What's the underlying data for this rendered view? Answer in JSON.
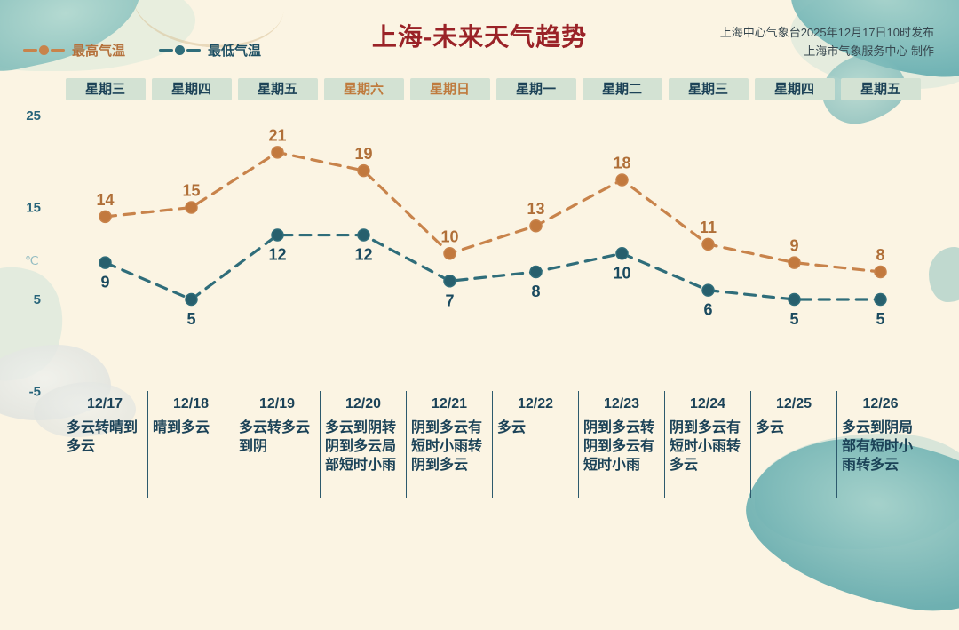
{
  "header": {
    "title": "上海-未来天气趋势",
    "source_line1": "上海中心气象台2025年12月17日10时发布",
    "source_line2": "上海市气象服务中心 制作",
    "legend": [
      {
        "label": "最高气温"
      },
      {
        "label": "最低气温"
      }
    ]
  },
  "colors": {
    "background": "#fbf4e3",
    "title": "#9a2227",
    "high_series": "#c8834b",
    "low_series": "#2f6d7a",
    "weekday_box_bg": "#d3e2d3",
    "weekend_text": "#bf7b3e",
    "table_text": "#1b4257"
  },
  "weekdays": [
    {
      "label": "星期三",
      "weekend": false
    },
    {
      "label": "星期四",
      "weekend": false
    },
    {
      "label": "星期五",
      "weekend": false
    },
    {
      "label": "星期六",
      "weekend": true
    },
    {
      "label": "星期日",
      "weekend": true
    },
    {
      "label": "星期一",
      "weekend": false
    },
    {
      "label": "星期二",
      "weekend": false
    },
    {
      "label": "星期三",
      "weekend": false
    },
    {
      "label": "星期四",
      "weekend": false
    },
    {
      "label": "星期五",
      "weekend": false
    }
  ],
  "chart_data": {
    "type": "line",
    "title": "上海-未来天气趋势",
    "categories": [
      "12/17",
      "12/18",
      "12/19",
      "12/20",
      "12/21",
      "12/22",
      "12/23",
      "12/24",
      "12/25",
      "12/26"
    ],
    "series": [
      {
        "name": "最高气温",
        "color": "#c8834b",
        "point_color": "#c2793e",
        "label_color": "#b06f38",
        "values": [
          14,
          15,
          21,
          19,
          10,
          13,
          18,
          11,
          9,
          8
        ]
      },
      {
        "name": "最低气温",
        "color": "#2f6d7a",
        "point_color": "#275f6d",
        "label_color": "#1a4a5f",
        "values": [
          9,
          5,
          12,
          12,
          7,
          8,
          10,
          6,
          5,
          5
        ]
      }
    ],
    "xlabel": "",
    "ylabel": "℃",
    "yticks": [
      25,
      15,
      5,
      -5
    ],
    "ylim": [
      -5,
      25
    ],
    "grid": false,
    "line_style": "dashed",
    "legend_position": "top-left"
  },
  "forecast": [
    {
      "date": "12/17",
      "weather": "多云转晴到多云"
    },
    {
      "date": "12/18",
      "weather": "晴到多云"
    },
    {
      "date": "12/19",
      "weather": "多云转多云到阴"
    },
    {
      "date": "12/20",
      "weather": "多云到阴转阴到多云局部短时小雨"
    },
    {
      "date": "12/21",
      "weather": "阴到多云有短时小雨转阴到多云"
    },
    {
      "date": "12/22",
      "weather": "多云"
    },
    {
      "date": "12/23",
      "weather": "阴到多云转阴到多云有短时小雨"
    },
    {
      "date": "12/24",
      "weather": "阴到多云有短时小雨转多云"
    },
    {
      "date": "12/25",
      "weather": "多云"
    },
    {
      "date": "12/26",
      "weather": "多云到阴局部有短时小雨转多云"
    }
  ]
}
